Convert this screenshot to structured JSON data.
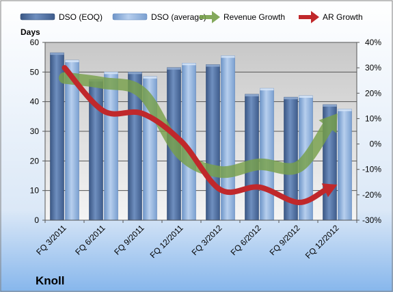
{
  "company_label": "Knoll",
  "chart_data": {
    "type": "bar",
    "categories": [
      "FQ 3/2011",
      "FQ 6/2011",
      "FQ 9/2011",
      "FQ 12/2011",
      "FQ 3/2012",
      "FQ 6/2012",
      "FQ 9/2012",
      "FQ 12/2012"
    ],
    "series": [
      {
        "name": "DSO (EOQ)",
        "type": "bar",
        "axis": "left",
        "color": "#4a6b9c",
        "values": [
          56.5,
          47.5,
          50,
          51.5,
          52.5,
          42.5,
          41.5,
          39
        ]
      },
      {
        "name": "DSO (average)",
        "type": "bar",
        "axis": "left",
        "color": "#8fb1dd",
        "values": [
          54,
          50,
          48.5,
          53,
          55.5,
          44.5,
          42,
          37.5
        ]
      },
      {
        "name": "Revenue Growth",
        "type": "line",
        "axis": "right",
        "color": "#77a04a",
        "arrow": true,
        "values": [
          0.26,
          0.24,
          0.2,
          -0.04,
          -0.11,
          -0.08,
          -0.09,
          0.12
        ]
      },
      {
        "name": "AR Growth",
        "type": "line",
        "axis": "right",
        "color": "#c0282b",
        "arrow": true,
        "values": [
          0.3,
          0.13,
          0.12,
          0.01,
          -0.18,
          -0.17,
          -0.23,
          -0.16
        ]
      }
    ],
    "ylabel": "Days",
    "ylim": [
      0,
      60
    ],
    "yticks": [
      "0",
      "10",
      "20",
      "30",
      "40",
      "50",
      "60"
    ],
    "y2lim": [
      -0.3,
      0.4
    ],
    "y2ticks": [
      "-30%",
      "-20%",
      "-10%",
      "0%",
      "10%",
      "20%",
      "30%",
      "40%"
    ],
    "grid": true,
    "legend_position": "top"
  }
}
